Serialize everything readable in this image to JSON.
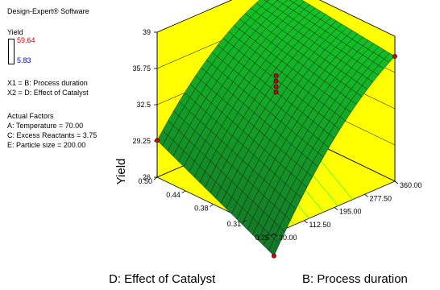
{
  "software": "Design-Expert® Software",
  "response": {
    "name": "Yield",
    "max": "59.64",
    "min": "5.83",
    "max_color": "#e00000",
    "min_color": "#0000e0"
  },
  "factors": {
    "x1": "X1 = B: Process duration",
    "x2": "X2 = D: Effect of Catalyst"
  },
  "actual_factors": {
    "title": "Actual Factors",
    "items": [
      "A: Temperature = 70.00",
      "C: Excess Reactants = 3.75",
      "E: Particle size = 200.00"
    ]
  },
  "chart_data": {
    "type": "surface",
    "zlabel": "Yield",
    "xlabel": "B: Process duration",
    "ylabel": "D: Effect of Catalyst",
    "x_ticks": [
      "30.00",
      "112.50",
      "195.00",
      "277.50",
      "360.00"
    ],
    "y_ticks": [
      "0.25",
      "0.31",
      "0.38",
      "0.44",
      "0.50"
    ],
    "z_ticks": [
      "26",
      "29.25",
      "32.5",
      "35.75",
      "39"
    ],
    "z_range": [
      26,
      39
    ],
    "x_range": [
      30,
      360
    ],
    "y_range": [
      0.25,
      0.5
    ],
    "corner_values": {
      "B30_D0.25": 24.0,
      "B360_D0.25": 37.2,
      "B30_D0.50": 29.3,
      "B360_D0.50": 38.5
    },
    "design_points": [
      {
        "B": 195,
        "D": 0.375,
        "yield": 35.3
      },
      {
        "B": 195,
        "D": 0.375,
        "yield": 34.8
      },
      {
        "B": 195,
        "D": 0.375,
        "yield": 34.3
      },
      {
        "B": 195,
        "D": 0.375,
        "yield": 33.8
      },
      {
        "B": 360,
        "D": 0.25,
        "yield": 37.2
      },
      {
        "B": 30,
        "D": 0.5,
        "yield": 29.3
      },
      {
        "B": 30,
        "D": 0.25,
        "yield": 24.0
      }
    ],
    "colors": {
      "wall": "#ffff00",
      "surface": "#1aa02a",
      "mesh": "#000000",
      "contour": "#66ff33",
      "points": "#e00000"
    },
    "grid": true
  }
}
